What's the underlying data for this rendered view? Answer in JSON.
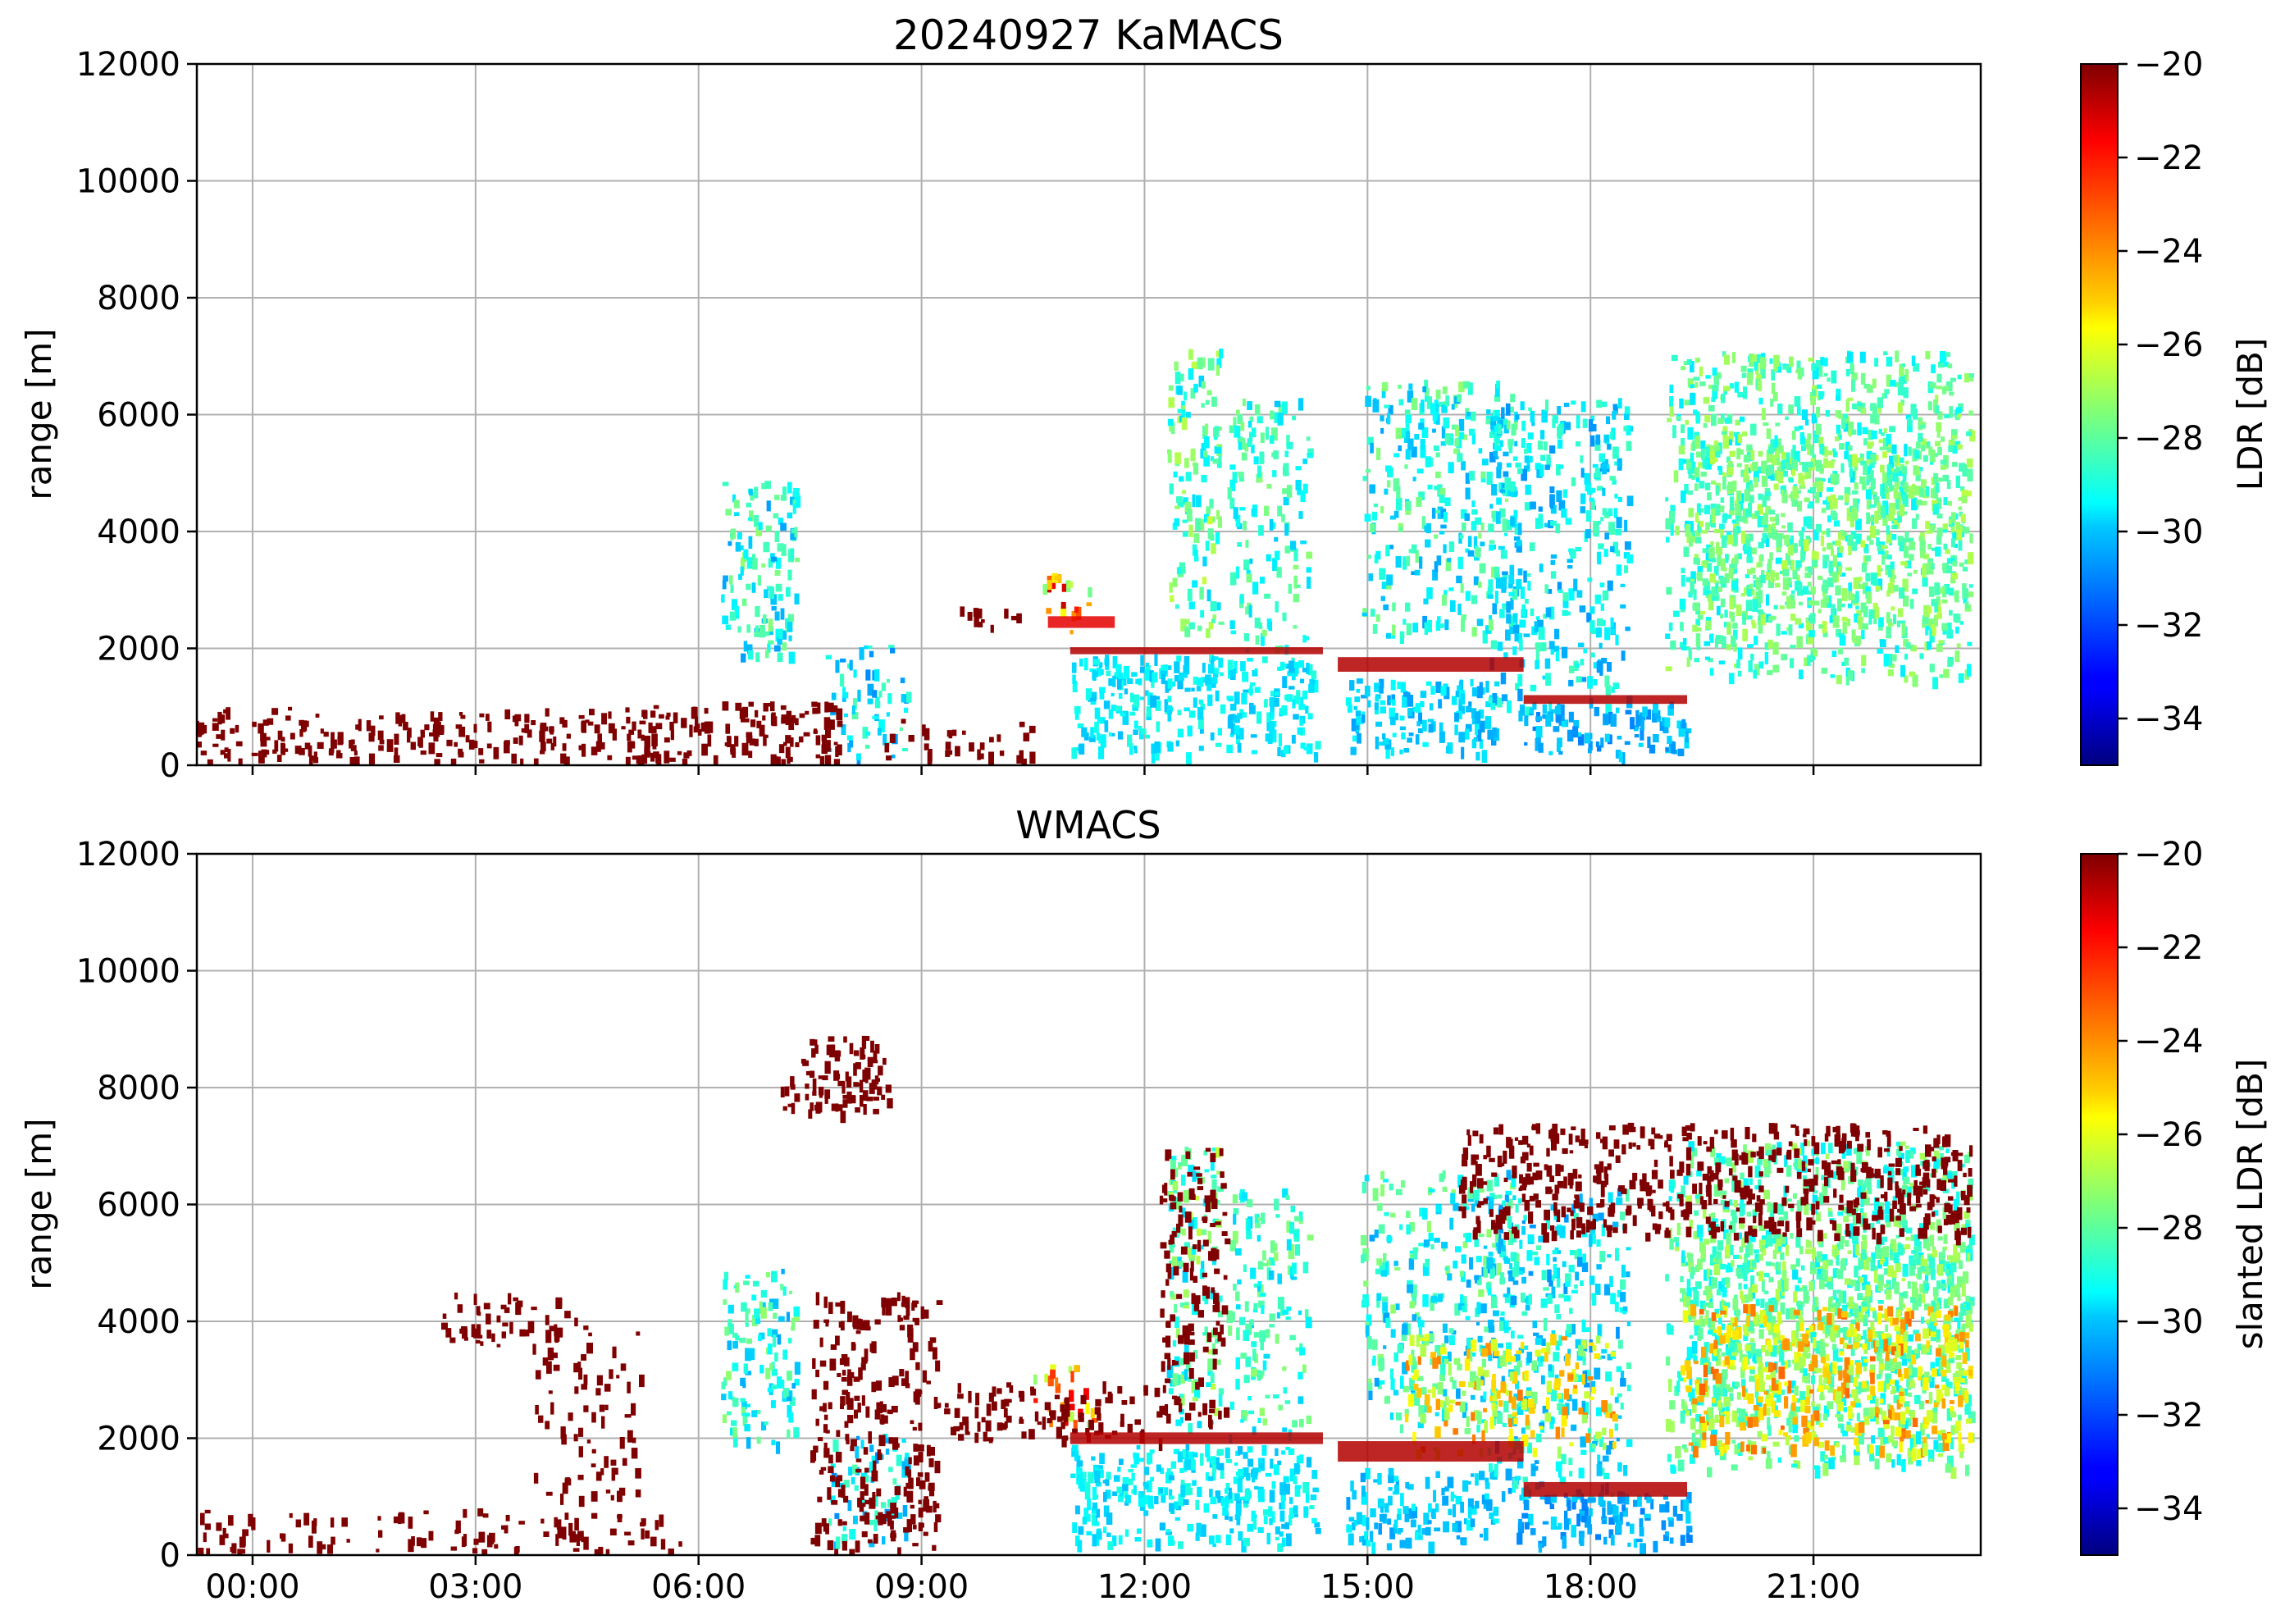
{
  "chart_data": [
    {
      "type": "heatmap",
      "title": "20240927 KaMACS",
      "xlabel": "",
      "ylabel": "range [m]",
      "ylim": [
        0,
        12000
      ],
      "xlim": [
        "-00:45",
        "23:15"
      ],
      "xticks": [
        "00:00",
        "03:00",
        "06:00",
        "09:00",
        "12:00",
        "15:00",
        "18:00",
        "21:00"
      ],
      "yticks": [
        0,
        2000,
        4000,
        6000,
        8000,
        10000,
        12000
      ],
      "grid": true,
      "colorbar": {
        "label": "LDR [dB]",
        "range": [
          -35,
          -20
        ],
        "colormap": "jet",
        "ticks": [
          -34,
          -32,
          -30,
          -28,
          -26,
          -24,
          -22,
          -20
        ]
      }
    },
    {
      "type": "heatmap",
      "title": "WMACS",
      "xlabel": "",
      "ylabel": "range [m]",
      "ylim": [
        0,
        12000
      ],
      "xlim": [
        "-00:45",
        "23:15"
      ],
      "xticks": [
        "00:00",
        "03:00",
        "06:00",
        "09:00",
        "12:00",
        "15:00",
        "18:00",
        "21:00"
      ],
      "yticks": [
        0,
        2000,
        4000,
        6000,
        8000,
        10000,
        12000
      ],
      "grid": true,
      "colorbar": {
        "label": "slanted LDR [dB]",
        "range": [
          -35,
          -20
        ],
        "colormap": "jet",
        "ticks": [
          -34,
          -32,
          -30,
          -28,
          -26,
          -24,
          -22,
          -20
        ]
      }
    }
  ]
}
